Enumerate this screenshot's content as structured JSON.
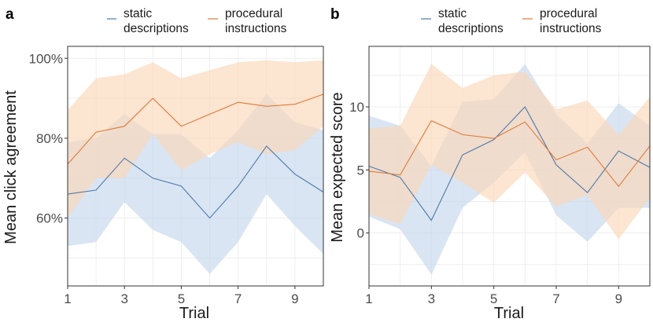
{
  "colors": {
    "static": "#4f78a8",
    "static_band": "#c5d7ec",
    "procedural": "#e07b39",
    "procedural_band": "#fbd7b8",
    "grid": "#ebebeb",
    "panel_border": "#333333"
  },
  "legend": {
    "static_line1": "static",
    "static_line2": "descriptions",
    "procedural_line1": "procedural",
    "procedural_line2": "instructions"
  },
  "chart_data": [
    {
      "type": "line",
      "panel_label": "a",
      "title": "",
      "xlabel": "Trial",
      "ylabel": "Mean click agreement",
      "x": [
        1,
        2,
        3,
        4,
        5,
        6,
        7,
        8,
        9,
        10
      ],
      "xlim": [
        1,
        10
      ],
      "ylim": [
        0.43,
        1.03
      ],
      "x_ticks": [
        1,
        3,
        5,
        7,
        9
      ],
      "x_tick_labels": [
        "1",
        "3",
        "5",
        "7",
        "9"
      ],
      "y_ticks": [
        0.6,
        0.8,
        1.0
      ],
      "y_tick_labels": [
        "60%",
        "80%",
        "100%"
      ],
      "series": [
        {
          "name": "static descriptions",
          "key": "static",
          "values": [
            0.66,
            0.67,
            0.75,
            0.7,
            0.68,
            0.6,
            0.68,
            0.78,
            0.71,
            0.665
          ],
          "lower": [
            0.53,
            0.54,
            0.64,
            0.57,
            0.54,
            0.46,
            0.54,
            0.66,
            0.58,
            0.51
          ],
          "upper": [
            0.79,
            0.8,
            0.86,
            0.81,
            0.81,
            0.75,
            0.82,
            0.91,
            0.84,
            0.82
          ]
        },
        {
          "name": "procedural instructions",
          "key": "procedural",
          "values": [
            0.735,
            0.815,
            0.83,
            0.9,
            0.83,
            0.86,
            0.89,
            0.88,
            0.885,
            0.91
          ],
          "lower": [
            0.6,
            0.7,
            0.7,
            0.81,
            0.72,
            0.76,
            0.79,
            0.76,
            0.77,
            0.83
          ],
          "upper": [
            0.87,
            0.95,
            0.96,
            0.99,
            0.95,
            0.97,
            0.99,
            0.995,
            0.99,
            0.995
          ]
        }
      ]
    },
    {
      "type": "line",
      "panel_label": "b",
      "title": "",
      "xlabel": "Trial",
      "ylabel": "Mean expected score",
      "x": [
        1,
        2,
        3,
        4,
        5,
        6,
        7,
        8,
        9,
        10
      ],
      "xlim": [
        1,
        10
      ],
      "ylim": [
        -4.2,
        14.8
      ],
      "x_ticks": [
        1,
        3,
        5,
        7,
        9
      ],
      "x_tick_labels": [
        "1",
        "3",
        "5",
        "7",
        "9"
      ],
      "y_ticks": [
        0,
        5,
        10
      ],
      "y_tick_labels": [
        "0",
        "5",
        "10"
      ],
      "series": [
        {
          "name": "static descriptions",
          "key": "static",
          "values": [
            5.3,
            4.4,
            1.0,
            6.2,
            7.4,
            10.0,
            5.4,
            3.2,
            6.5,
            5.2
          ],
          "lower": [
            1.3,
            0.3,
            -3.3,
            2.0,
            4.0,
            6.4,
            1.4,
            -0.7,
            2.0,
            2.0
          ],
          "upper": [
            9.3,
            8.5,
            5.3,
            10.4,
            10.6,
            13.4,
            9.4,
            7.1,
            10.3,
            8.5
          ]
        },
        {
          "name": "procedural instructions",
          "key": "procedural",
          "values": [
            4.9,
            4.6,
            8.9,
            7.8,
            7.5,
            8.8,
            5.8,
            6.8,
            3.7,
            6.9
          ],
          "lower": [
            1.5,
            0.7,
            5.4,
            4.0,
            2.4,
            4.8,
            2.1,
            3.0,
            -0.5,
            2.8
          ],
          "upper": [
            8.3,
            8.5,
            13.4,
            11.5,
            12.5,
            12.8,
            9.8,
            10.5,
            7.8,
            10.8
          ]
        }
      ]
    }
  ]
}
